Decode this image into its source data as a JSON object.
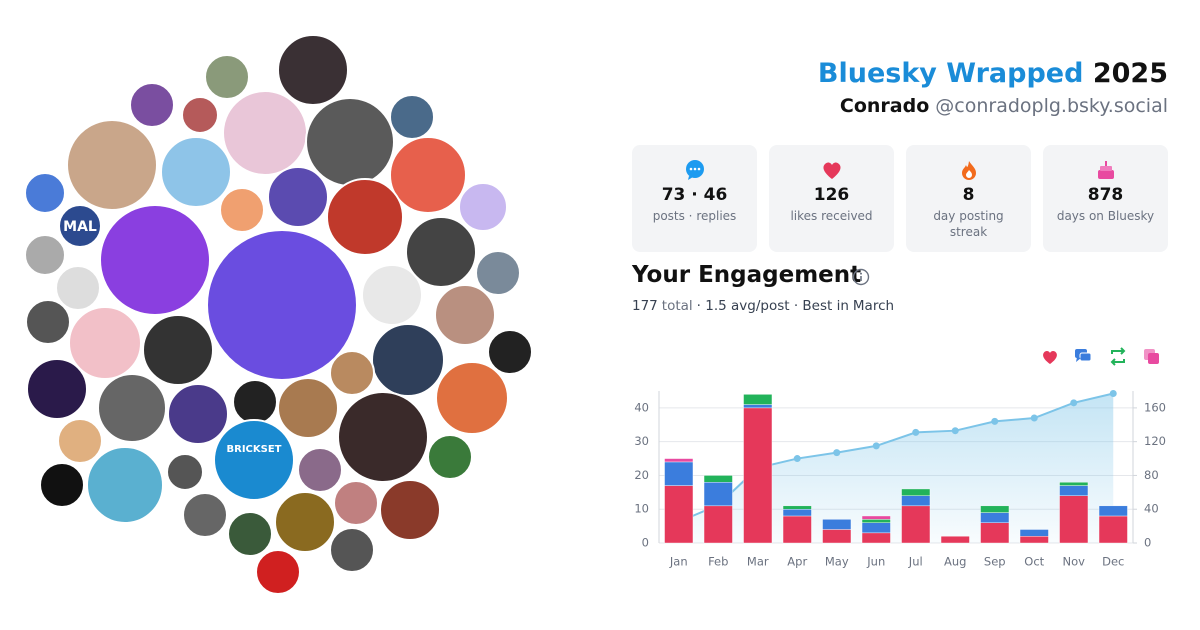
{
  "header": {
    "title": "Bluesky Wrapped",
    "year": "2025",
    "name": "Conrado",
    "handle": "@conradoplg.bsky.social"
  },
  "stats": [
    {
      "value": "73 · 46",
      "label": "posts · replies"
    },
    {
      "value": 126,
      "label": "likes received"
    },
    {
      "value": 8,
      "label": "day posting streak"
    },
    {
      "value": 878,
      "label": "days on Bluesky"
    }
  ],
  "avatar_labels": [
    "MAL",
    "BRICKSET"
  ],
  "chart_data": {
    "type": "bar",
    "stacked": true,
    "title": "Your Engagement",
    "summary": [
      "177",
      "total",
      "· 1.5 avg/post · Best in",
      "March"
    ],
    "categories": [
      "Jan",
      "Feb",
      "Mar",
      "Apr",
      "May",
      "Jun",
      "Jul",
      "Aug",
      "Sep",
      "Oct",
      "Nov",
      "Dec"
    ],
    "series": [
      {
        "color": "#e5385a",
        "values": [
          17,
          11,
          40,
          8,
          4,
          3,
          11,
          2,
          6,
          2,
          14,
          8
        ]
      },
      {
        "color": "#3b7ddd",
        "values": [
          7,
          7,
          1,
          2,
          3,
          3,
          3,
          0,
          3,
          2,
          3,
          3
        ]
      },
      {
        "color": "#22b35a",
        "values": [
          0,
          2,
          3,
          1,
          0,
          1,
          2,
          0,
          2,
          0,
          1,
          0
        ]
      },
      {
        "color": "#e84aa0",
        "values": [
          1,
          0,
          0,
          0,
          0,
          1,
          0,
          0,
          0,
          0,
          0,
          0
        ]
      },
      {
        "type": "line",
        "axis": "y2",
        "color": "#7cc4e8",
        "values": [
          25,
          45,
          89,
          100,
          107,
          115,
          131,
          133,
          144,
          148,
          166,
          177
        ]
      }
    ],
    "ylim": [
      0,
      45
    ],
    "yticks": [
      0,
      10,
      20,
      30,
      40
    ],
    "y2lim": [
      0,
      180
    ],
    "y2ticks": [
      0,
      40,
      80,
      120,
      160
    ],
    "grid": true
  }
}
